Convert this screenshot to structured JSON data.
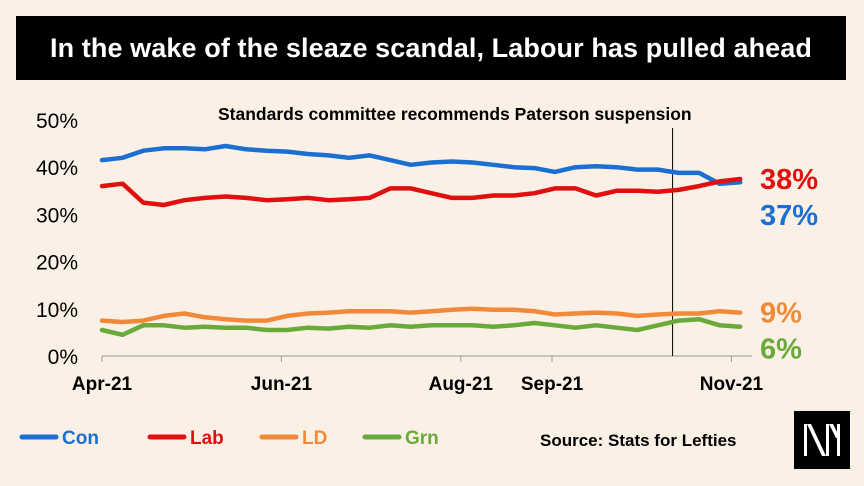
{
  "title": "In the wake of the sleaze scandal, Labour has pulled ahead",
  "source": "Source: Stats for Lefties",
  "logo_text": "N",
  "chart_data": {
    "type": "line",
    "title": "In the wake of the sleaze scandal, Labour has pulled ahead",
    "xlabel": "",
    "ylabel": "",
    "ylim": [
      0,
      50
    ],
    "yticks": [
      "0%",
      "10%",
      "20%",
      "30%",
      "40%",
      "50%"
    ],
    "xticks": [
      "Apr-21",
      "Jun-21",
      "Aug-21",
      "Sep-21",
      "Nov-21"
    ],
    "xtick_dates": [
      "2021-04-01",
      "2021-06-01",
      "2021-08-01",
      "2021-09-01",
      "2021-11-01"
    ],
    "grid": false,
    "legend": "bottom-left",
    "annotation": {
      "date": "2021-10-12",
      "label": "Standards committee recommends Paterson suspension"
    },
    "x": [
      "2021-04-01",
      "2021-04-08",
      "2021-04-15",
      "2021-04-22",
      "2021-04-29",
      "2021-05-06",
      "2021-05-13",
      "2021-05-20",
      "2021-05-27",
      "2021-06-03",
      "2021-06-10",
      "2021-06-17",
      "2021-06-24",
      "2021-07-01",
      "2021-07-08",
      "2021-07-15",
      "2021-07-22",
      "2021-07-29",
      "2021-08-05",
      "2021-08-12",
      "2021-08-19",
      "2021-08-26",
      "2021-09-02",
      "2021-09-09",
      "2021-09-16",
      "2021-09-23",
      "2021-09-30",
      "2021-10-07",
      "2021-10-14",
      "2021-10-21",
      "2021-10-28",
      "2021-11-04"
    ],
    "series": [
      {
        "name": "Con",
        "color": "#1a6fd0",
        "end_label": "37%",
        "values": [
          41.5,
          42.0,
          43.5,
          44.0,
          44.0,
          43.8,
          44.5,
          43.8,
          43.5,
          43.3,
          42.8,
          42.5,
          42.0,
          42.5,
          41.5,
          40.5,
          41.0,
          41.2,
          41.0,
          40.5,
          40.0,
          39.8,
          39.0,
          40.0,
          40.2,
          40.0,
          39.5,
          39.5,
          38.8,
          38.8,
          36.5,
          36.8
        ]
      },
      {
        "name": "Lab",
        "color": "#e01010",
        "end_label": "38%",
        "values": [
          36.0,
          36.5,
          32.5,
          32.0,
          33.0,
          33.5,
          33.8,
          33.5,
          33.0,
          33.2,
          33.5,
          33.0,
          33.2,
          33.5,
          35.5,
          35.5,
          34.5,
          33.5,
          33.5,
          34.0,
          34.0,
          34.5,
          35.5,
          35.5,
          34.0,
          35.0,
          35.0,
          34.8,
          35.2,
          36.0,
          37.0,
          37.5
        ]
      },
      {
        "name": "LD",
        "color": "#f08a3a",
        "end_label": "9%",
        "values": [
          7.5,
          7.2,
          7.5,
          8.5,
          9.0,
          8.2,
          7.8,
          7.5,
          7.5,
          8.5,
          9.0,
          9.2,
          9.5,
          9.5,
          9.5,
          9.2,
          9.5,
          9.8,
          10.0,
          9.8,
          9.8,
          9.5,
          8.8,
          9.0,
          9.2,
          9.0,
          8.5,
          8.8,
          9.0,
          9.0,
          9.5,
          9.2
        ]
      },
      {
        "name": "Grn",
        "color": "#6aaa3a",
        "end_label": "6%",
        "values": [
          5.5,
          4.5,
          6.5,
          6.5,
          6.0,
          6.2,
          6.0,
          6.0,
          5.5,
          5.5,
          6.0,
          5.8,
          6.2,
          6.0,
          6.5,
          6.2,
          6.5,
          6.5,
          6.5,
          6.2,
          6.5,
          7.0,
          6.5,
          6.0,
          6.5,
          6.0,
          5.5,
          6.5,
          7.5,
          7.8,
          6.5,
          6.2
        ]
      }
    ]
  }
}
